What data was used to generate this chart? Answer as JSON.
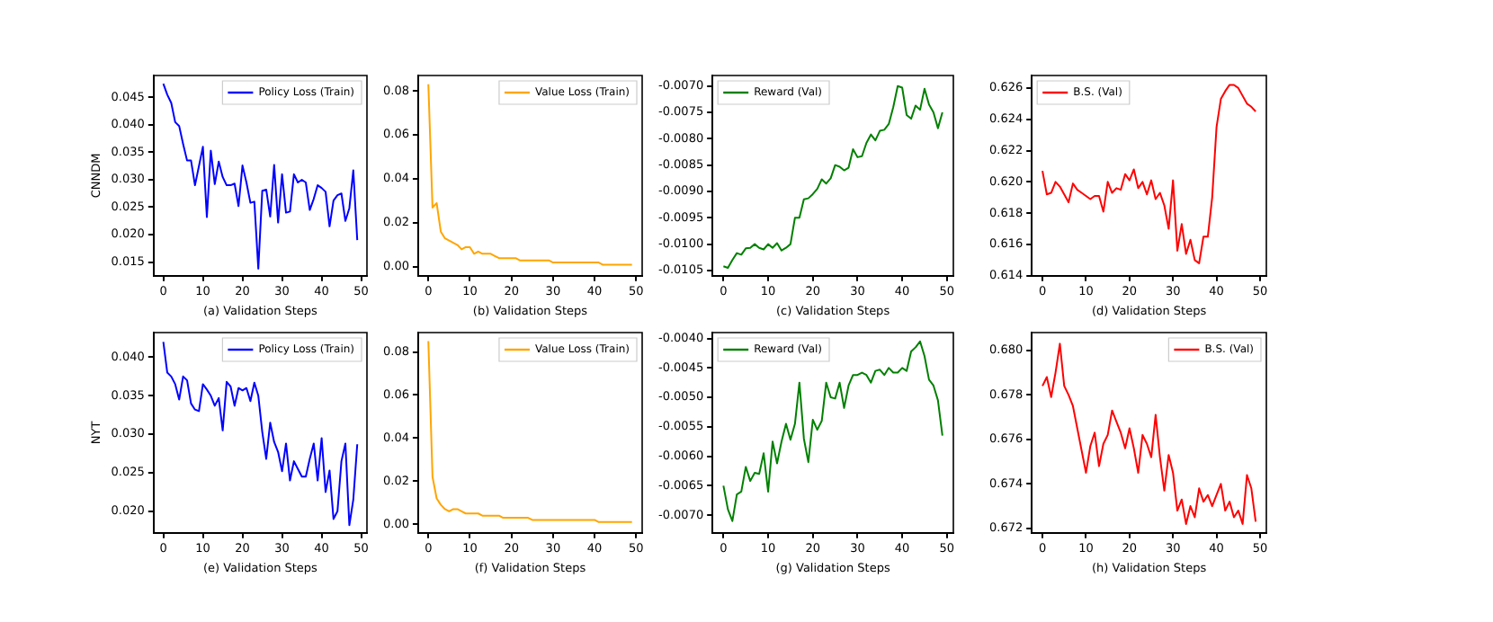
{
  "chart_data": [
    {
      "type": "line",
      "xlabel": "(a) Validation Steps",
      "ylabel": "CNNDM",
      "legend": "top right",
      "xlim": [
        -2.45,
        51.45
      ],
      "xticks": [
        0,
        10,
        20,
        30,
        40,
        50
      ],
      "ylim": [
        0.0125,
        0.049
      ],
      "yticks": [
        0.015,
        {
          "value": 0.02,
          "label": "0.020"
        },
        0.025,
        {
          "value": 0.03,
          "label": "0.030"
        },
        0.035,
        {
          "value": 0.04,
          "label": "0.040"
        },
        0.045
      ],
      "x": [
        0,
        1,
        2,
        3,
        4,
        5,
        6,
        7,
        8,
        9,
        10,
        11,
        12,
        13,
        14,
        15,
        16,
        17,
        18,
        19,
        20,
        21,
        22,
        23,
        24,
        25,
        26,
        27,
        28,
        29,
        30,
        31,
        32,
        33,
        34,
        35,
        36,
        37,
        38,
        39,
        40,
        41,
        42,
        43,
        44,
        45,
        46,
        47,
        48,
        49
      ],
      "series": [
        {
          "name": "Policy Loss (Train)",
          "color": "#0000ff",
          "values": [
            0.0475,
            0.0455,
            0.044,
            0.0405,
            0.0398,
            0.0365,
            0.0335,
            0.0335,
            0.029,
            0.0325,
            0.036,
            0.0232,
            0.0353,
            0.0292,
            0.0333,
            0.0305,
            0.029,
            0.029,
            0.0293,
            0.0252,
            0.0326,
            0.0295,
            0.0258,
            0.026,
            0.0138,
            0.028,
            0.0282,
            0.0233,
            0.0327,
            0.0222,
            0.031,
            0.024,
            0.0242,
            0.031,
            0.0295,
            0.03,
            0.0295,
            0.0245,
            0.0265,
            0.029,
            0.0285,
            0.0278,
            0.0215,
            0.0262,
            0.0272,
            0.0275,
            0.0225,
            0.0248,
            0.0317,
            0.019
          ]
        }
      ]
    },
    {
      "type": "line",
      "xlabel": "(b) Validation Steps",
      "legend": "top right",
      "xlim": [
        -2.45,
        51.45
      ],
      "xticks": [
        0,
        10,
        20,
        30,
        40,
        50
      ],
      "ylim": [
        -0.004,
        0.087
      ],
      "yticks": [
        {
          "value": 0,
          "label": "0.00"
        },
        {
          "value": 0.02,
          "label": "0.02"
        },
        {
          "value": 0.04,
          "label": "0.04"
        },
        {
          "value": 0.06,
          "label": "0.06"
        },
        {
          "value": 0.08,
          "label": "0.08"
        }
      ],
      "x": [
        0,
        1,
        2,
        3,
        4,
        5,
        6,
        7,
        8,
        9,
        10,
        11,
        12,
        13,
        14,
        15,
        16,
        17,
        18,
        19,
        20,
        21,
        22,
        23,
        24,
        25,
        26,
        27,
        28,
        29,
        30,
        31,
        32,
        33,
        34,
        35,
        36,
        37,
        38,
        39,
        40,
        41,
        42,
        43,
        44,
        45,
        46,
        47,
        48,
        49
      ],
      "series": [
        {
          "name": "Value Loss (Train)",
          "color": "#ffa500",
          "values": [
            0.083,
            0.027,
            0.029,
            0.016,
            0.013,
            0.012,
            0.011,
            0.01,
            0.008,
            0.009,
            0.009,
            0.006,
            0.007,
            0.006,
            0.006,
            0.006,
            0.005,
            0.004,
            0.004,
            0.004,
            0.004,
            0.004,
            0.003,
            0.003,
            0.003,
            0.003,
            0.003,
            0.003,
            0.003,
            0.003,
            0.002,
            0.002,
            0.002,
            0.002,
            0.002,
            0.002,
            0.002,
            0.002,
            0.002,
            0.002,
            0.002,
            0.002,
            0.001,
            0.001,
            0.001,
            0.001,
            0.001,
            0.001,
            0.001,
            0.001
          ]
        }
      ]
    },
    {
      "type": "line",
      "xlabel": "(c) Validation Steps",
      "legend": "top left",
      "xlim": [
        -2.45,
        51.45
      ],
      "xticks": [
        0,
        10,
        20,
        30,
        40,
        50
      ],
      "ylim": [
        -0.0106,
        -0.0068
      ],
      "yticks": [
        {
          "value": -0.0105,
          "label": "-0.0105"
        },
        {
          "value": -0.01,
          "label": "-0.0100"
        },
        {
          "value": -0.0095,
          "label": "-0.0095"
        },
        {
          "value": -0.009,
          "label": "-0.0090"
        },
        {
          "value": -0.0085,
          "label": "-0.0085"
        },
        {
          "value": -0.008,
          "label": "-0.0080"
        },
        {
          "value": -0.0075,
          "label": "-0.0075"
        },
        {
          "value": -0.007,
          "label": "-0.0070"
        }
      ],
      "x": [
        0,
        1,
        2,
        3,
        4,
        5,
        6,
        7,
        8,
        9,
        10,
        11,
        12,
        13,
        14,
        15,
        16,
        17,
        18,
        19,
        20,
        21,
        22,
        23,
        24,
        25,
        26,
        27,
        28,
        29,
        30,
        31,
        32,
        33,
        34,
        35,
        36,
        37,
        38,
        39,
        40,
        41,
        42,
        43,
        44,
        45,
        46,
        47,
        48,
        49
      ],
      "series": [
        {
          "name": "Reward (Val)",
          "color": "#008000",
          "values": [
            -0.01042,
            -0.01045,
            -0.0103,
            -0.01017,
            -0.0102,
            -0.01008,
            -0.01007,
            -0.01,
            -0.01007,
            -0.0101,
            -0.01,
            -0.01007,
            -0.00998,
            -0.01012,
            -0.01007,
            -0.01,
            -0.0095,
            -0.0095,
            -0.00915,
            -0.00913,
            -0.00905,
            -0.00895,
            -0.00877,
            -0.00885,
            -0.00875,
            -0.0085,
            -0.00853,
            -0.0086,
            -0.00855,
            -0.0082,
            -0.00835,
            -0.00833,
            -0.00808,
            -0.00792,
            -0.00803,
            -0.00785,
            -0.00783,
            -0.00772,
            -0.0074,
            -0.007,
            -0.00703,
            -0.00755,
            -0.00762,
            -0.00737,
            -0.00745,
            -0.00705,
            -0.00735,
            -0.0075,
            -0.0078,
            -0.0075
          ]
        }
      ]
    },
    {
      "type": "line",
      "xlabel": "(d) Validation Steps",
      "legend": "top left",
      "xlim": [
        -2.45,
        51.45
      ],
      "xticks": [
        0,
        10,
        20,
        30,
        40,
        50
      ],
      "ylim": [
        0.614,
        0.6268
      ],
      "yticks": [
        0.614,
        0.616,
        0.618,
        {
          "value": 0.62,
          "label": "0.620"
        },
        0.622,
        0.624,
        0.626
      ],
      "x": [
        0,
        1,
        2,
        3,
        4,
        5,
        6,
        7,
        8,
        9,
        10,
        11,
        12,
        13,
        14,
        15,
        16,
        17,
        18,
        19,
        20,
        21,
        22,
        23,
        24,
        25,
        26,
        27,
        28,
        29,
        30,
        31,
        32,
        33,
        34,
        35,
        36,
        37,
        38,
        39,
        40,
        41,
        42,
        43,
        44,
        45,
        46,
        47,
        48,
        49
      ],
      "series": [
        {
          "name": "B.S. (Val)",
          "color": "#ff0000",
          "values": [
            0.6207,
            0.6192,
            0.6193,
            0.62,
            0.6197,
            0.6192,
            0.6187,
            0.6199,
            0.6195,
            0.6193,
            0.6191,
            0.6189,
            0.6191,
            0.6191,
            0.6181,
            0.62,
            0.6193,
            0.6196,
            0.6195,
            0.6205,
            0.6201,
            0.6208,
            0.6196,
            0.62,
            0.6192,
            0.6201,
            0.6189,
            0.6193,
            0.6185,
            0.617,
            0.6201,
            0.6156,
            0.6173,
            0.6154,
            0.6163,
            0.615,
            0.6148,
            0.6165,
            0.6165,
            0.619,
            0.6235,
            0.6253,
            0.6258,
            0.6262,
            0.6262,
            0.626,
            0.6255,
            0.625,
            0.6248,
            0.6245
          ]
        }
      ]
    },
    {
      "type": "line",
      "xlabel": "(e) Validation Steps",
      "ylabel": "NYT",
      "legend": "top right",
      "xlim": [
        -2.45,
        51.45
      ],
      "xticks": [
        0,
        10,
        20,
        30,
        40,
        50
      ],
      "ylim": [
        0.0172,
        0.0432
      ],
      "yticks": [
        {
          "value": 0.02,
          "label": "0.020"
        },
        0.025,
        {
          "value": 0.03,
          "label": "0.030"
        },
        0.035,
        {
          "value": 0.04,
          "label": "0.040"
        }
      ],
      "x": [
        0,
        1,
        2,
        3,
        4,
        5,
        6,
        7,
        8,
        9,
        10,
        11,
        12,
        13,
        14,
        15,
        16,
        17,
        18,
        19,
        20,
        21,
        22,
        23,
        24,
        25,
        26,
        27,
        28,
        29,
        30,
        31,
        32,
        33,
        34,
        35,
        36,
        37,
        38,
        39,
        40,
        41,
        42,
        43,
        44,
        45,
        46,
        47,
        48,
        49
      ],
      "series": [
        {
          "name": "Policy Loss (Train)",
          "color": "#0000ff",
          "values": [
            0.042,
            0.038,
            0.0375,
            0.0365,
            0.0345,
            0.0375,
            0.037,
            0.034,
            0.0332,
            0.033,
            0.0365,
            0.0358,
            0.035,
            0.0337,
            0.0347,
            0.0305,
            0.0368,
            0.0362,
            0.0337,
            0.036,
            0.0357,
            0.036,
            0.0343,
            0.0367,
            0.035,
            0.0303,
            0.0268,
            0.0315,
            0.029,
            0.0277,
            0.0252,
            0.0288,
            0.024,
            0.0265,
            0.0255,
            0.0245,
            0.0245,
            0.0268,
            0.0288,
            0.024,
            0.0295,
            0.0225,
            0.0253,
            0.019,
            0.02,
            0.0265,
            0.0288,
            0.0182,
            0.0215,
            0.0287
          ]
        }
      ]
    },
    {
      "type": "line",
      "xlabel": "(f) Validation Steps",
      "legend": "top right",
      "xlim": [
        -2.45,
        51.45
      ],
      "xticks": [
        0,
        10,
        20,
        30,
        40,
        50
      ],
      "ylim": [
        -0.004,
        0.089
      ],
      "yticks": [
        {
          "value": 0,
          "label": "0.00"
        },
        {
          "value": 0.02,
          "label": "0.02"
        },
        {
          "value": 0.04,
          "label": "0.04"
        },
        {
          "value": 0.06,
          "label": "0.06"
        },
        {
          "value": 0.08,
          "label": "0.08"
        }
      ],
      "x": [
        0,
        1,
        2,
        3,
        4,
        5,
        6,
        7,
        8,
        9,
        10,
        11,
        12,
        13,
        14,
        15,
        16,
        17,
        18,
        19,
        20,
        21,
        22,
        23,
        24,
        25,
        26,
        27,
        28,
        29,
        30,
        31,
        32,
        33,
        34,
        35,
        36,
        37,
        38,
        39,
        40,
        41,
        42,
        43,
        44,
        45,
        46,
        47,
        48,
        49
      ],
      "series": [
        {
          "name": "Value Loss (Train)",
          "color": "#ffa500",
          "values": [
            0.085,
            0.022,
            0.012,
            0.009,
            0.007,
            0.006,
            0.007,
            0.007,
            0.006,
            0.005,
            0.005,
            0.005,
            0.005,
            0.004,
            0.004,
            0.004,
            0.004,
            0.004,
            0.003,
            0.003,
            0.003,
            0.003,
            0.003,
            0.003,
            0.003,
            0.002,
            0.002,
            0.002,
            0.002,
            0.002,
            0.002,
            0.002,
            0.002,
            0.002,
            0.002,
            0.002,
            0.002,
            0.002,
            0.002,
            0.002,
            0.002,
            0.001,
            0.001,
            0.001,
            0.001,
            0.001,
            0.001,
            0.001,
            0.001,
            0.001
          ]
        }
      ]
    },
    {
      "type": "line",
      "xlabel": "(g) Validation Steps",
      "legend": "top left",
      "xlim": [
        -2.45,
        51.45
      ],
      "xticks": [
        0,
        10,
        20,
        30,
        40,
        50
      ],
      "ylim": [
        -0.0073,
        -0.0039
      ],
      "yticks": [
        {
          "value": -0.007,
          "label": "-0.0070"
        },
        {
          "value": -0.0065,
          "label": "-0.0065"
        },
        {
          "value": -0.006,
          "label": "-0.0060"
        },
        {
          "value": -0.0055,
          "label": "-0.0055"
        },
        {
          "value": -0.005,
          "label": "-0.0050"
        },
        {
          "value": -0.0045,
          "label": "-0.0045"
        },
        {
          "value": -0.004,
          "label": "-0.0040"
        }
      ],
      "x": [
        0,
        1,
        2,
        3,
        4,
        5,
        6,
        7,
        8,
        9,
        10,
        11,
        12,
        13,
        14,
        15,
        16,
        17,
        18,
        19,
        20,
        21,
        22,
        23,
        24,
        25,
        26,
        27,
        28,
        29,
        30,
        31,
        32,
        33,
        34,
        35,
        36,
        37,
        38,
        39,
        40,
        41,
        42,
        43,
        44,
        45,
        46,
        47,
        48,
        49
      ],
      "series": [
        {
          "name": "Reward (Val)",
          "color": "#008000",
          "values": [
            -0.0065,
            -0.0069,
            -0.0071,
            -0.00665,
            -0.0066,
            -0.00618,
            -0.00642,
            -0.00628,
            -0.0063,
            -0.00595,
            -0.0066,
            -0.00575,
            -0.00612,
            -0.00575,
            -0.00545,
            -0.00572,
            -0.00545,
            -0.00475,
            -0.0057,
            -0.0061,
            -0.00538,
            -0.00555,
            -0.0054,
            -0.00475,
            -0.005,
            -0.00502,
            -0.00475,
            -0.00518,
            -0.0048,
            -0.00462,
            -0.00462,
            -0.00458,
            -0.00462,
            -0.00475,
            -0.00455,
            -0.00453,
            -0.00462,
            -0.0045,
            -0.00458,
            -0.00458,
            -0.0045,
            -0.00455,
            -0.00422,
            -0.00415,
            -0.00405,
            -0.0043,
            -0.0047,
            -0.0048,
            -0.00505,
            -0.00565
          ]
        }
      ]
    },
    {
      "type": "line",
      "xlabel": "(h) Validation Steps",
      "legend": "top right",
      "xlim": [
        -2.45,
        51.45
      ],
      "xticks": [
        0,
        10,
        20,
        30,
        40,
        50
      ],
      "ylim": [
        0.6718,
        0.6808
      ],
      "yticks": [
        0.672,
        0.674,
        0.676,
        0.678,
        {
          "value": 0.68,
          "label": "0.680"
        }
      ],
      "x": [
        0,
        1,
        2,
        3,
        4,
        5,
        6,
        7,
        8,
        9,
        10,
        11,
        12,
        13,
        14,
        15,
        16,
        17,
        18,
        19,
        20,
        21,
        22,
        23,
        24,
        25,
        26,
        27,
        28,
        29,
        30,
        31,
        32,
        33,
        34,
        35,
        36,
        37,
        38,
        39,
        40,
        41,
        42,
        43,
        44,
        45,
        46,
        47,
        48,
        49
      ],
      "series": [
        {
          "name": "B.S. (Val)",
          "color": "#ff0000",
          "values": [
            0.6784,
            0.6788,
            0.6779,
            0.679,
            0.6803,
            0.6784,
            0.678,
            0.6775,
            0.6765,
            0.6755,
            0.6745,
            0.6757,
            0.6763,
            0.6748,
            0.6758,
            0.6762,
            0.6773,
            0.6768,
            0.6763,
            0.6756,
            0.6765,
            0.6756,
            0.6745,
            0.6762,
            0.6758,
            0.6752,
            0.6771,
            0.6752,
            0.6737,
            0.6753,
            0.6745,
            0.6728,
            0.6733,
            0.6722,
            0.673,
            0.6725,
            0.6738,
            0.6732,
            0.6735,
            0.673,
            0.6735,
            0.674,
            0.6728,
            0.6732,
            0.6725,
            0.6728,
            0.6722,
            0.6744,
            0.6738,
            0.6723
          ]
        }
      ]
    }
  ]
}
